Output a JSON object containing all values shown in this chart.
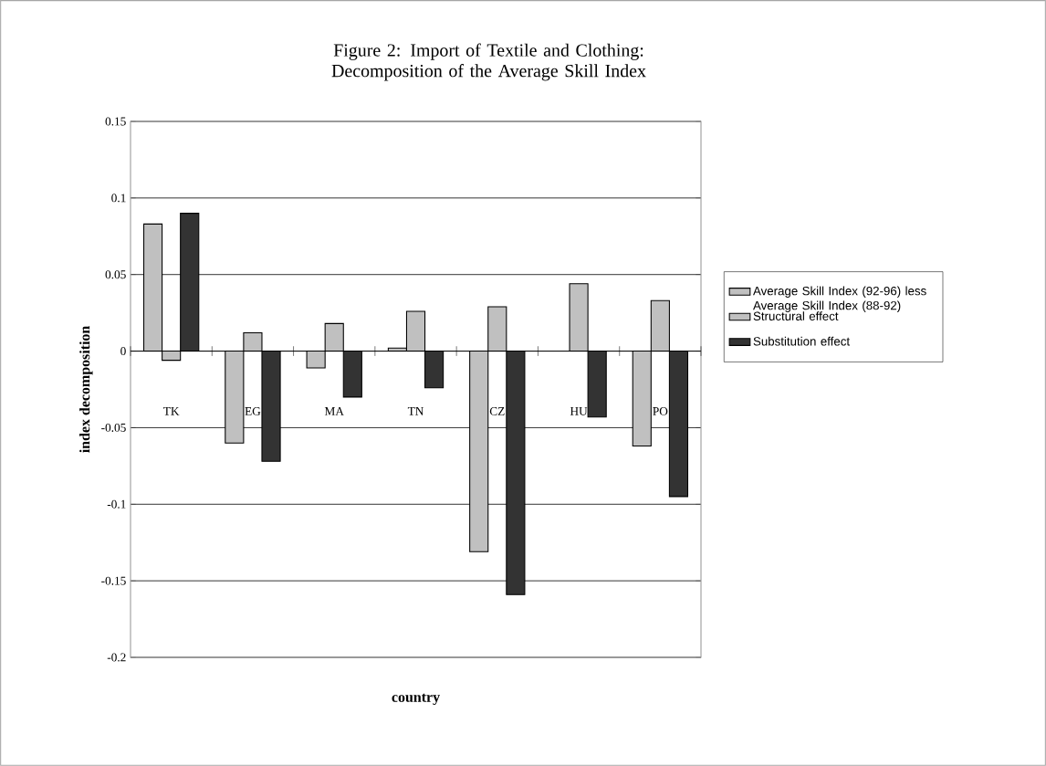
{
  "chart_data": {
    "type": "bar",
    "title": "Figure 2: Import of Textile and Clothing: Decomposition of the Average Skill Index",
    "xlabel": "country",
    "ylabel": "index decomposition",
    "categories": [
      "TK",
      "EG",
      "MA",
      "TN",
      "CZ",
      "HU",
      "PO"
    ],
    "series": [
      {
        "name": "Average Skill Index (92-96) less Average Skill Index (88-92)",
        "color": "#c0c0c0",
        "values": [
          0.083,
          -0.06,
          -0.011,
          0.002,
          -0.131,
          null,
          -0.062
        ]
      },
      {
        "name": "Structural effect",
        "color": "#c0c0c0",
        "values": [
          -0.006,
          0.012,
          0.018,
          0.026,
          0.029,
          0.044,
          0.033
        ]
      },
      {
        "name": "Substitution effect",
        "color": "#333333",
        "values": [
          0.09,
          -0.072,
          -0.03,
          -0.024,
          -0.159,
          -0.043,
          -0.095
        ]
      }
    ],
    "ylim": [
      -0.2,
      0.15
    ],
    "yticks": [
      -0.2,
      -0.15,
      -0.1,
      -0.05,
      0,
      0.05,
      0.1,
      0.15
    ],
    "grid": "y",
    "legend": "right"
  }
}
